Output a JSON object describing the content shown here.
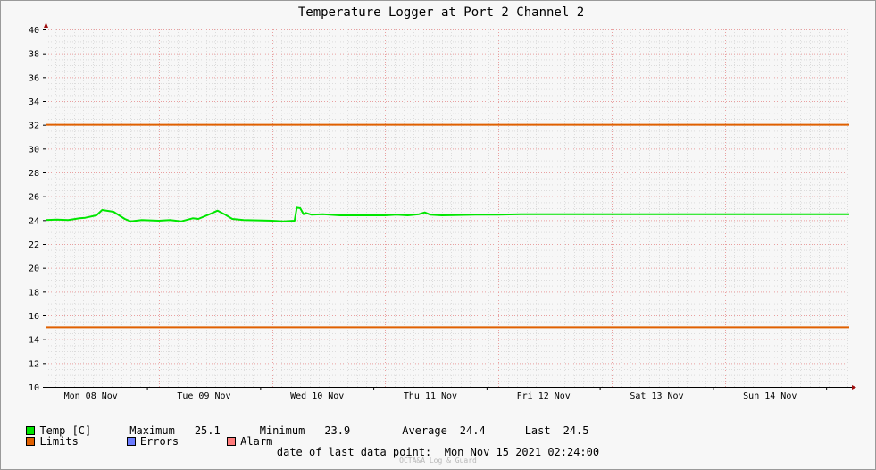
{
  "chart_data": {
    "type": "line",
    "title": "Temperature Logger at Port 2 Channel 2",
    "ylim": [
      10,
      40
    ],
    "y_ticks": [
      "10",
      "12",
      "14",
      "16",
      "18",
      "20",
      "22",
      "24",
      "26",
      "28",
      "30",
      "32",
      "34",
      "36",
      "38",
      "40"
    ],
    "x_tick_labels": [
      "Mon 08 Nov",
      "Tue 09 Nov",
      "Wed 10 Nov",
      "Thu 11 Nov",
      "Fri 12 Nov",
      "Sat 13 Nov",
      "Sun 14 Nov"
    ],
    "x_range_days": [
      0,
      7.1
    ],
    "grid": true,
    "series": [
      {
        "name": "Temp [C]",
        "color": "#00e600",
        "x": [
          0,
          0.1,
          0.2,
          0.3,
          0.35,
          0.45,
          0.5,
          0.6,
          0.65,
          0.7,
          0.75,
          0.85,
          1.0,
          1.1,
          1.2,
          1.3,
          1.35,
          1.45,
          1.52,
          1.58,
          1.65,
          1.75,
          2.0,
          2.1,
          2.2,
          2.22,
          2.25,
          2.28,
          2.3,
          2.35,
          2.45,
          2.6,
          2.8,
          3.0,
          3.1,
          3.2,
          3.3,
          3.35,
          3.4,
          3.5,
          3.8,
          4.0,
          4.2,
          4.5,
          5.0,
          5.5,
          6.0,
          6.5,
          7.0,
          7.1
        ],
        "values": [
          24.0,
          24.05,
          24.0,
          24.15,
          24.2,
          24.4,
          24.85,
          24.7,
          24.4,
          24.1,
          23.9,
          24.0,
          23.95,
          24.0,
          23.9,
          24.15,
          24.1,
          24.5,
          24.8,
          24.5,
          24.1,
          24.0,
          23.95,
          23.9,
          23.95,
          25.05,
          25.0,
          24.5,
          24.6,
          24.45,
          24.5,
          24.4,
          24.4,
          24.4,
          24.45,
          24.4,
          24.5,
          24.65,
          24.45,
          24.4,
          24.45,
          24.45,
          24.5,
          24.5,
          24.5,
          24.5,
          24.5,
          24.5,
          24.5,
          24.5
        ]
      },
      {
        "name": "Limits",
        "color": "#e06000",
        "lines": [
          32,
          15
        ]
      }
    ],
    "stats": {
      "maximum_label": "Maximum",
      "maximum": "25.1",
      "minimum_label": "Minimum",
      "minimum": "23.9",
      "average_label": "Average",
      "average": "24.4",
      "last_label": "Last",
      "last": "24.5"
    }
  },
  "legend": {
    "temp_label": "Temp [C]",
    "temp_color": "#00e600",
    "limits_label": "Limits",
    "limits_color": "#e06000",
    "errors_label": "Errors",
    "errors_color": "#6b7bff",
    "alarm_label": "Alarm",
    "alarm_color": "#ff7b7b"
  },
  "footer": {
    "date_label": "date of last data point:",
    "date_value": "Mon Nov 15 2021 02:24:00",
    "watermark": "OCTA&A Log & Guard"
  }
}
